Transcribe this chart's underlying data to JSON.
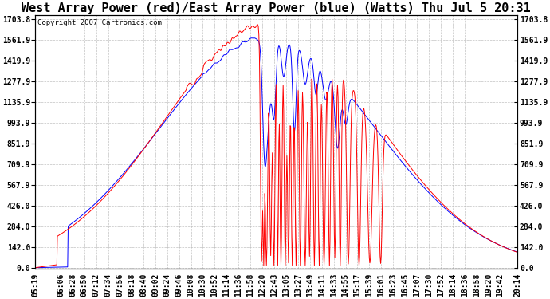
{
  "title": "West Array Power (red)/East Array Power (blue) (Watts) Thu Jul 5 20:31",
  "copyright": "Copyright 2007 Cartronics.com",
  "background_color": "#ffffff",
  "plot_bg_color": "#ffffff",
  "grid_color": "#bbbbbb",
  "yticks": [
    0.0,
    142.0,
    284.0,
    426.0,
    567.9,
    709.9,
    851.9,
    993.9,
    1135.9,
    1277.9,
    1419.9,
    1561.9,
    1703.8
  ],
  "ymax": 1703.8,
  "ymin": 0.0,
  "x_labels": [
    "05:19",
    "06:06",
    "06:28",
    "06:50",
    "07:12",
    "07:34",
    "07:56",
    "08:18",
    "08:40",
    "09:02",
    "09:24",
    "09:46",
    "10:08",
    "10:30",
    "10:52",
    "11:14",
    "11:36",
    "11:58",
    "12:20",
    "12:43",
    "13:05",
    "13:27",
    "13:49",
    "14:11",
    "14:33",
    "14:55",
    "15:17",
    "15:39",
    "16:01",
    "16:23",
    "16:45",
    "17:07",
    "17:30",
    "17:52",
    "18:14",
    "18:36",
    "18:58",
    "19:20",
    "19:42",
    "20:14"
  ],
  "red_line_color": "#ff0000",
  "blue_line_color": "#0000ff",
  "title_fontsize": 11,
  "tick_fontsize": 7,
  "copyright_fontsize": 6.5
}
